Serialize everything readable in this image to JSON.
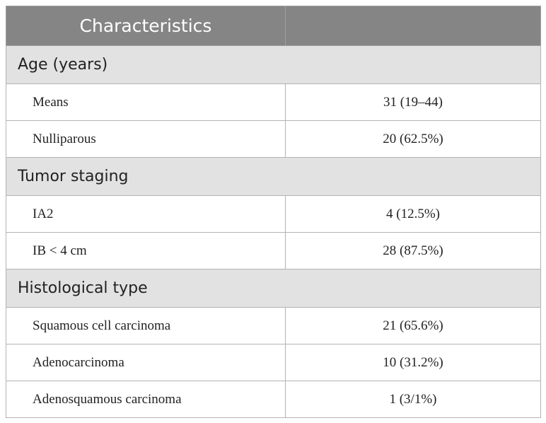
{
  "header": {
    "col1": "Characteristics",
    "col2": ""
  },
  "sections": [
    {
      "title": "Age (years)",
      "rows": [
        {
          "label": "Means",
          "value": "31 (19–44)"
        },
        {
          "label": "Nulliparous",
          "value": "20 (62.5%)"
        }
      ]
    },
    {
      "title": "Tumor staging",
      "rows": [
        {
          "label": "IA2",
          "value": "4 (12.5%)"
        },
        {
          "label": "IB < 4 cm",
          "value": "28 (87.5%)"
        }
      ]
    },
    {
      "title": "Histological type",
      "rows": [
        {
          "label": "Squamous cell carcinoma",
          "value": "21 (65.6%)"
        },
        {
          "label": "Adenocarcinoma",
          "value": "10 (31.2%)"
        },
        {
          "label": "Adenosquamous carcinoma",
          "value": "1 (3/1%)"
        }
      ]
    }
  ]
}
